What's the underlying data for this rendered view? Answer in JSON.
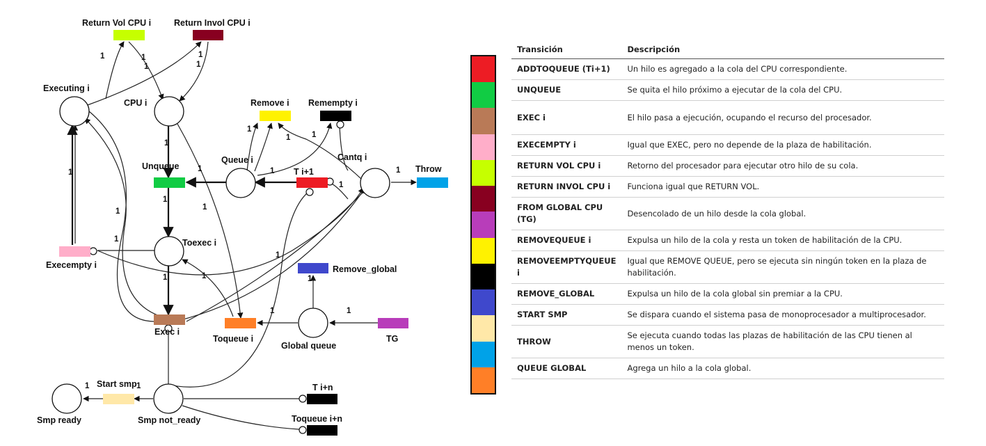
{
  "diagram": {
    "places": {
      "executing": "Executing i",
      "cpu": "CPU i",
      "queue": "Queue i",
      "cantq": "Cantq i",
      "toexec": "Toexec i",
      "global_queue": "Global queue",
      "smp_ready": "Smp ready",
      "smp_not_ready": "Smp not_ready"
    },
    "transitions": {
      "return_vol": "Return Vol CPU i",
      "return_invol": "Return Invol CPU i",
      "remove": "Remove i",
      "remempty": "Remempty i",
      "unqueue": "Unqueue",
      "ti1": "T i+1",
      "throw": "Throw",
      "execempty": "Execempty i",
      "remove_global": "Remove_global",
      "exec": "Exec i",
      "toqueue": "Toqueue i",
      "tg": "TG",
      "start_smp": "Start smp",
      "tin": "T i+n",
      "toqueue_in": "Toqueue i+n"
    },
    "arc_weight": "1",
    "colors": {
      "return_vol": "#c6ff00",
      "return_invol": "#880020",
      "remove": "#fff200",
      "remempty": "#000000",
      "unqueue": "#11cc44",
      "ti1": "#ed1c24",
      "throw": "#00a2e8",
      "execempty": "#ffaec9",
      "remove_global": "#3f48cc",
      "exec": "#b97a57",
      "toqueue": "#ff7f27",
      "tg": "#b83dba",
      "start_smp": "#ffe8a8",
      "tin": "#000000",
      "toqueue_in": "#000000"
    }
  },
  "legend": {
    "header": {
      "col1": "Transición",
      "col2": "Descripción"
    },
    "rows": [
      {
        "color": "#ed1c24",
        "name": "ADDTOQUEUE (Ti+1)",
        "desc": "Un hilo es agregado a la cola del CPU correspondiente."
      },
      {
        "color": "#11cc44",
        "name": "UNQUEUE",
        "desc": "Se quita el hilo próximo a ejecutar de la cola del CPU."
      },
      {
        "color": "#b97a57",
        "name": "EXEC i",
        "desc": "El hilo pasa a ejecución, ocupando el recurso del procesador."
      },
      {
        "color": "#ffaec9",
        "name": "EXECEMPTY i",
        "desc": "Igual que EXEC, pero no depende de la plaza de habilitación."
      },
      {
        "color": "#c6ff00",
        "name": "RETURN VOL CPU i",
        "desc": "Retorno del procesador para ejecutar otro hilo de su cola."
      },
      {
        "color": "#880020",
        "name": "RETURN INVOL CPU i",
        "desc": "Funciona igual que RETURN VOL."
      },
      {
        "color": "#b83dba",
        "name": "FROM GLOBAL CPU (TG)",
        "desc": "Desencolado de un hilo desde la cola global."
      },
      {
        "color": "#fff200",
        "name": "REMOVEQUEUE i",
        "desc": "Expulsa un hilo de la cola y resta un token de habilitación de la CPU."
      },
      {
        "color": "#000000",
        "name": "REMOVEEMPTYQUEUE i",
        "desc": "Igual que REMOVE QUEUE, pero se ejecuta sin ningún token en la plaza de habilitación."
      },
      {
        "color": "#3f48cc",
        "name": "REMOVE_GLOBAL",
        "desc": "Expulsa un hilo de la cola global sin premiar a la CPU."
      },
      {
        "color": "#ffe8a8",
        "name": "START SMP",
        "desc": "Se dispara cuando el sistema pasa de monoprocesador a multiprocesador."
      },
      {
        "color": "#00a2e8",
        "name": "THROW",
        "desc": "Se ejecuta cuando todas las plazas de habilitación de las CPU tienen al menos un token."
      },
      {
        "color": "#ff7f27",
        "name": "QUEUE GLOBAL",
        "desc": "Agrega un hilo a la cola global."
      }
    ]
  }
}
